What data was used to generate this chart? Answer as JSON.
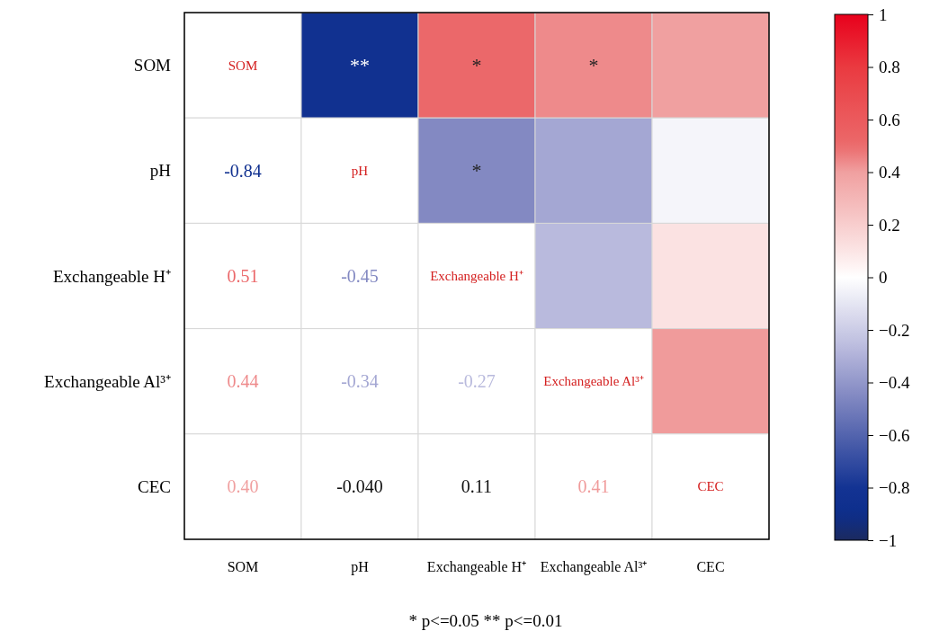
{
  "chart_data": {
    "type": "heatmap",
    "categories": [
      "SOM",
      "pH",
      "Exchangeable H⁺",
      "Exchangeable Al³⁺",
      "CEC"
    ],
    "y_categories": [
      "SOM",
      "pH",
      "Exchangeable H⁺",
      "Exchangeable Al³⁺",
      "CEC"
    ],
    "cells": [
      [
        null,
        -0.84,
        0.51,
        0.44,
        0.4
      ],
      [
        null,
        null,
        -0.45,
        -0.34,
        -0.04
      ],
      [
        null,
        null,
        null,
        -0.27,
        0.11
      ],
      [
        null,
        null,
        null,
        null,
        0.41
      ],
      [
        null,
        null,
        null,
        null,
        null
      ]
    ],
    "cell_labels": [
      [
        "SOM",
        "**",
        "*",
        "*",
        null
      ],
      [
        "-0.84",
        "pH",
        "*",
        null,
        null
      ],
      [
        "0.51",
        "-0.45",
        "Exchangeable H⁺",
        null,
        null
      ],
      [
        "0.44",
        "-0.34",
        "-0.27",
        "Exchangeable Al³⁺",
        null
      ],
      [
        "0.40",
        "-0.040",
        "0.11",
        "0.41",
        "CEC"
      ]
    ],
    "clim": [
      -1,
      1
    ],
    "cticks": [
      1,
      0.8,
      0.6,
      0.4,
      0.2,
      0,
      -0.2,
      -0.4,
      -0.6,
      -0.8,
      -1
    ],
    "annotations": [
      "* p<=0.05   ** p<=0.01"
    ]
  }
}
